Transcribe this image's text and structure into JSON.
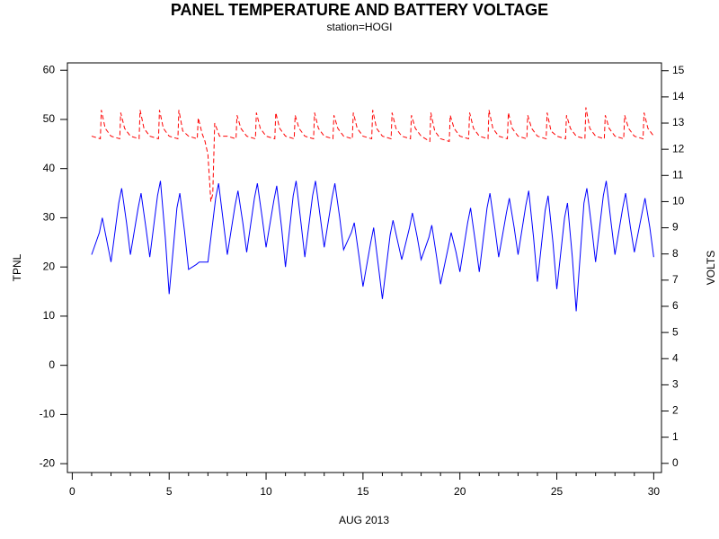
{
  "chart_data": {
    "type": "line",
    "title": "PANEL TEMPERATURE AND BATTERY VOLTAGE",
    "subtitle": "station=HOGI",
    "xlabel": "AUG 2013",
    "ylabel": "TPNL",
    "y2label": "VOLTS",
    "xlim": [
      -0.25,
      30.4
    ],
    "xticks": [
      0,
      5,
      10,
      15,
      20,
      25,
      30
    ],
    "xminor": [
      1,
      2,
      3,
      4,
      6,
      7,
      8,
      9,
      11,
      12,
      13,
      14,
      16,
      17,
      18,
      19,
      21,
      22,
      23,
      24,
      26,
      27,
      28,
      29
    ],
    "ylim": [
      -21.8,
      61.5
    ],
    "yticks": [
      -20,
      -10,
      0,
      10,
      20,
      30,
      40,
      50,
      60
    ],
    "y2lim": [
      -0.35,
      15.3
    ],
    "y2ticks": [
      0,
      1,
      2,
      3,
      4,
      5,
      6,
      7,
      8,
      9,
      10,
      11,
      12,
      13,
      14,
      15
    ],
    "series": [
      {
        "name": "TPNL",
        "color": "#0000ff",
        "linestyle": "solid",
        "axis": "y",
        "x": [
          1,
          1.4,
          1.55,
          1.8,
          2,
          2.4,
          2.55,
          2.8,
          3,
          3.4,
          3.55,
          3.8,
          4,
          4.4,
          4.55,
          4.8,
          5,
          5.4,
          5.55,
          5.8,
          6,
          6.4,
          6.55,
          6.8,
          7,
          7.4,
          7.55,
          7.8,
          8,
          8.4,
          8.55,
          8.8,
          9,
          9.4,
          9.55,
          9.8,
          10,
          10.4,
          10.55,
          10.8,
          11,
          11.4,
          11.55,
          11.8,
          12,
          12.4,
          12.55,
          12.8,
          13,
          13.4,
          13.55,
          13.8,
          14,
          14.4,
          14.55,
          14.8,
          15,
          15.4,
          15.55,
          15.8,
          16,
          16.4,
          16.55,
          16.8,
          17,
          17.4,
          17.55,
          17.8,
          18,
          18.4,
          18.55,
          18.8,
          19,
          19.4,
          19.55,
          19.8,
          20,
          20.4,
          20.55,
          20.8,
          21,
          21.4,
          21.55,
          21.8,
          22,
          22.4,
          22.55,
          22.8,
          23,
          23.4,
          23.55,
          23.8,
          24,
          24.4,
          24.55,
          24.8,
          25,
          25.4,
          25.55,
          25.8,
          26,
          26.4,
          26.55,
          26.8,
          27,
          27.4,
          27.55,
          27.8,
          28,
          28.4,
          28.55,
          28.8,
          29,
          29.4,
          29.55,
          29.8,
          30
        ],
        "values": [
          22.5,
          27,
          30,
          25,
          21,
          33,
          36,
          29,
          22.5,
          32,
          35,
          28,
          22,
          34.5,
          37.5,
          26,
          14.5,
          32,
          35,
          27,
          19.5,
          20.5,
          21,
          21,
          21,
          34,
          37,
          29,
          22.5,
          32.5,
          35.5,
          29,
          23,
          34,
          37,
          30,
          24,
          33.5,
          36.5,
          28,
          20,
          34.5,
          37.5,
          29,
          22,
          34.5,
          37.5,
          30,
          24,
          34,
          37,
          30,
          23.5,
          27,
          29,
          22,
          16,
          25,
          28,
          20,
          13.5,
          26.5,
          29.5,
          25,
          21.5,
          28,
          31,
          26,
          21.5,
          26,
          28.5,
          22,
          16.5,
          24,
          27,
          23,
          19,
          29,
          32,
          25,
          19,
          32,
          35,
          28,
          22,
          31,
          34,
          28,
          22.5,
          32.5,
          35.5,
          26,
          17,
          31.5,
          34.5,
          25,
          15.5,
          30,
          33,
          22,
          11,
          33,
          36,
          28,
          21,
          34.5,
          37.5,
          29,
          22.5,
          32,
          35,
          28,
          23,
          31,
          34,
          28,
          22
        ]
      },
      {
        "name": "VOLTS",
        "color": "#ff0000",
        "linestyle": "dashed",
        "axis": "y2",
        "x": [
          1,
          1.45,
          1.5,
          1.7,
          2,
          2.45,
          2.5,
          2.7,
          3,
          3.45,
          3.5,
          3.7,
          4,
          4.45,
          4.5,
          4.7,
          5,
          5.45,
          5.5,
          5.7,
          6,
          6.45,
          6.5,
          6.7,
          6.85,
          7,
          7.15,
          7.25,
          7.35,
          7.6,
          8,
          8.45,
          8.5,
          8.7,
          9,
          9.45,
          9.5,
          9.7,
          10,
          10.45,
          10.5,
          10.7,
          11,
          11.45,
          11.5,
          11.7,
          12,
          12.45,
          12.5,
          12.7,
          13,
          13.45,
          13.5,
          13.7,
          14,
          14.45,
          14.5,
          14.7,
          15,
          15.45,
          15.5,
          15.7,
          16,
          16.45,
          16.5,
          16.7,
          17,
          17.45,
          17.5,
          17.7,
          18,
          18.45,
          18.5,
          18.7,
          19,
          19.45,
          19.5,
          19.7,
          20,
          20.45,
          20.5,
          20.7,
          21,
          21.45,
          21.5,
          21.7,
          22,
          22.45,
          22.5,
          22.7,
          23,
          23.45,
          23.5,
          23.7,
          24,
          24.45,
          24.5,
          24.7,
          25,
          25.45,
          25.5,
          25.7,
          26,
          26.45,
          26.5,
          26.7,
          27,
          27.45,
          27.5,
          27.7,
          28,
          28.45,
          28.5,
          28.7,
          29,
          29.45,
          29.5,
          29.7,
          30
        ],
        "values": [
          12.5,
          12.4,
          13.5,
          12.8,
          12.5,
          12.4,
          13.4,
          12.8,
          12.5,
          12.4,
          13.5,
          12.8,
          12.5,
          12.4,
          13.5,
          12.8,
          12.5,
          12.4,
          13.5,
          12.7,
          12.5,
          12.4,
          13.2,
          12.6,
          12.3,
          11.8,
          10.0,
          10.3,
          13.0,
          12.5,
          12.5,
          12.4,
          13.3,
          12.8,
          12.5,
          12.4,
          13.4,
          12.8,
          12.5,
          12.4,
          13.4,
          12.8,
          12.5,
          12.4,
          13.3,
          12.8,
          12.5,
          12.4,
          13.4,
          12.8,
          12.5,
          12.4,
          13.3,
          12.8,
          12.5,
          12.4,
          13.4,
          12.8,
          12.5,
          12.4,
          13.5,
          12.8,
          12.5,
          12.4,
          13.4,
          12.8,
          12.5,
          12.4,
          13.3,
          12.8,
          12.5,
          12.3,
          13.4,
          12.7,
          12.4,
          12.3,
          13.3,
          12.8,
          12.5,
          12.4,
          13.4,
          12.8,
          12.5,
          12.4,
          13.5,
          12.8,
          12.5,
          12.4,
          13.4,
          12.8,
          12.5,
          12.4,
          13.3,
          12.8,
          12.5,
          12.4,
          13.4,
          12.7,
          12.5,
          12.4,
          13.3,
          12.8,
          12.5,
          12.4,
          13.6,
          12.8,
          12.5,
          12.4,
          13.3,
          12.8,
          12.5,
          12.4,
          13.3,
          12.8,
          12.5,
          12.4,
          13.4,
          12.8,
          12.5
        ]
      }
    ]
  }
}
